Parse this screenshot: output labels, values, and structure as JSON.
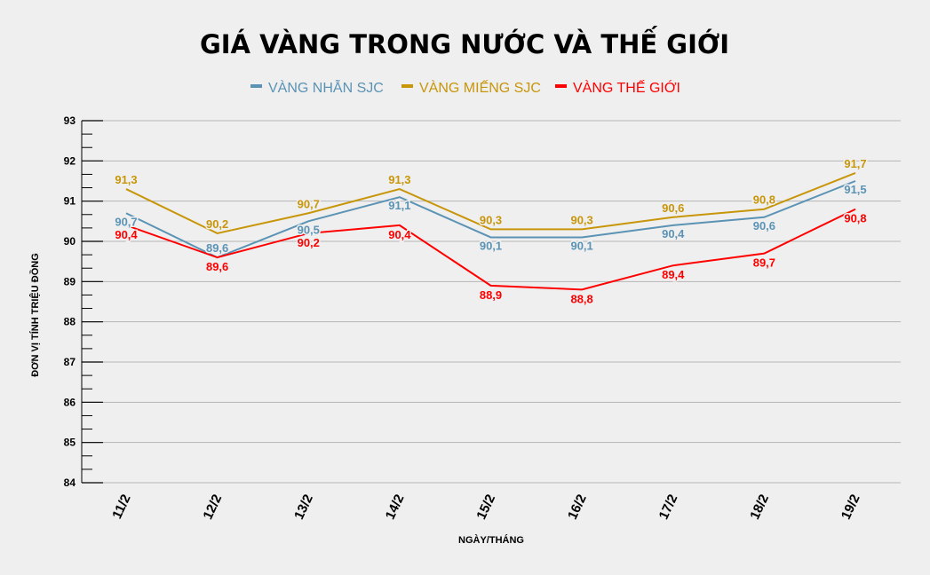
{
  "chart_data": {
    "type": "line",
    "title": "GIÁ VÀNG TRONG NƯỚC VÀ THẾ GIỚI",
    "xlabel": "NGÀY/THÁNG",
    "ylabel": "ĐƠN VỊ TÍNH TRIỆU ĐỒNG",
    "categories": [
      "11/2",
      "12/2",
      "13/2",
      "14/2",
      "15/2",
      "16/2",
      "17/2",
      "18/2",
      "19/2"
    ],
    "ylim": [
      84,
      93
    ],
    "yticks": [
      84,
      85,
      86,
      87,
      88,
      89,
      90,
      91,
      92,
      93
    ],
    "grid": true,
    "legend_position": "top",
    "series": [
      {
        "name": "VÀNG NHẪN SJC",
        "color": "#5b93b5",
        "values": [
          90.7,
          89.6,
          90.5,
          91.1,
          90.1,
          90.1,
          90.4,
          90.6,
          91.5
        ]
      },
      {
        "name": "VÀNG MIẾNG SJC",
        "color": "#c8960a",
        "values": [
          91.3,
          90.2,
          90.7,
          91.3,
          90.3,
          90.3,
          90.6,
          90.8,
          91.7
        ]
      },
      {
        "name": "VÀNG THẾ GIỚI",
        "color": "#ff0000",
        "values": [
          90.4,
          89.6,
          90.2,
          90.4,
          88.9,
          88.8,
          89.4,
          89.7,
          90.8
        ]
      }
    ]
  }
}
